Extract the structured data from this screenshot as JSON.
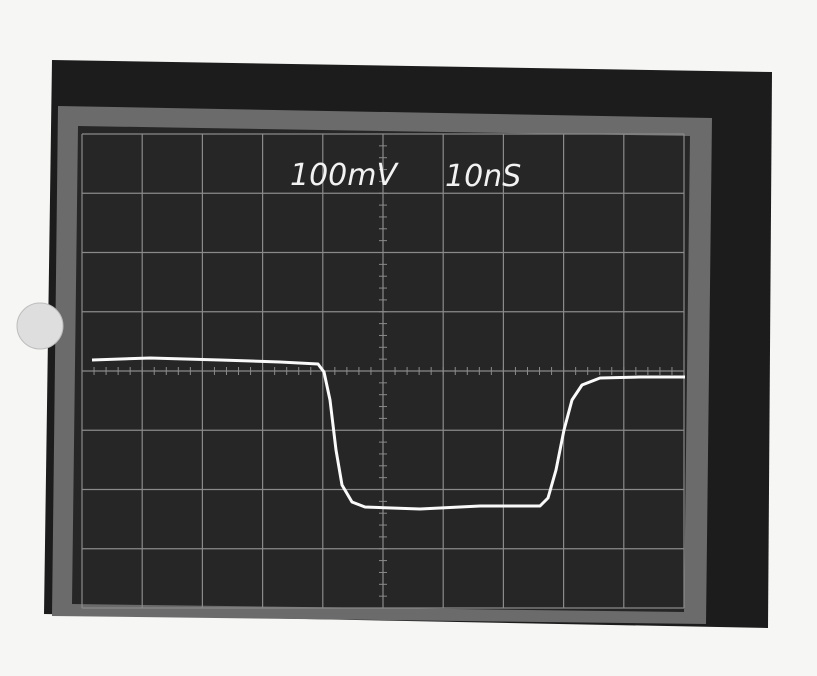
{
  "screen": {
    "vertical_scale": "100mV",
    "time_scale": "10nS"
  }
}
